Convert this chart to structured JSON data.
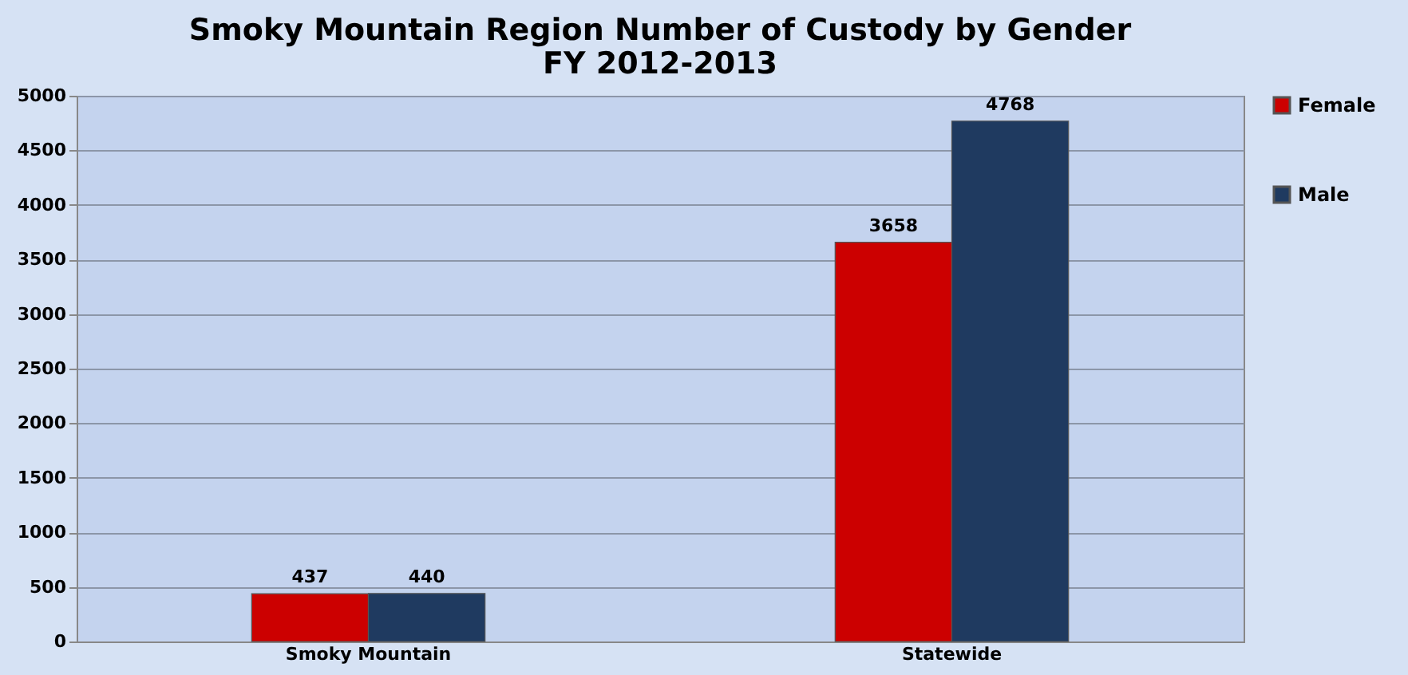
{
  "chart_data": {
    "type": "bar",
    "title": [
      "Smoky Mountain Region Number of Custody by Gender",
      "FY 2012-2013"
    ],
    "categories": [
      "Smoky Mountain",
      "Statewide"
    ],
    "series": [
      {
        "name": "Female",
        "color": "#cc0000",
        "values": [
          437,
          3658
        ]
      },
      {
        "name": "Male",
        "color": "#1f3a60",
        "values": [
          440,
          4768
        ]
      }
    ],
    "ylim": [
      0,
      5000
    ],
    "yticks": [
      0,
      500,
      1000,
      1500,
      2000,
      2500,
      3000,
      3500,
      4000,
      4500,
      5000
    ],
    "grid": "y",
    "legend": "right",
    "data_labels": true
  }
}
